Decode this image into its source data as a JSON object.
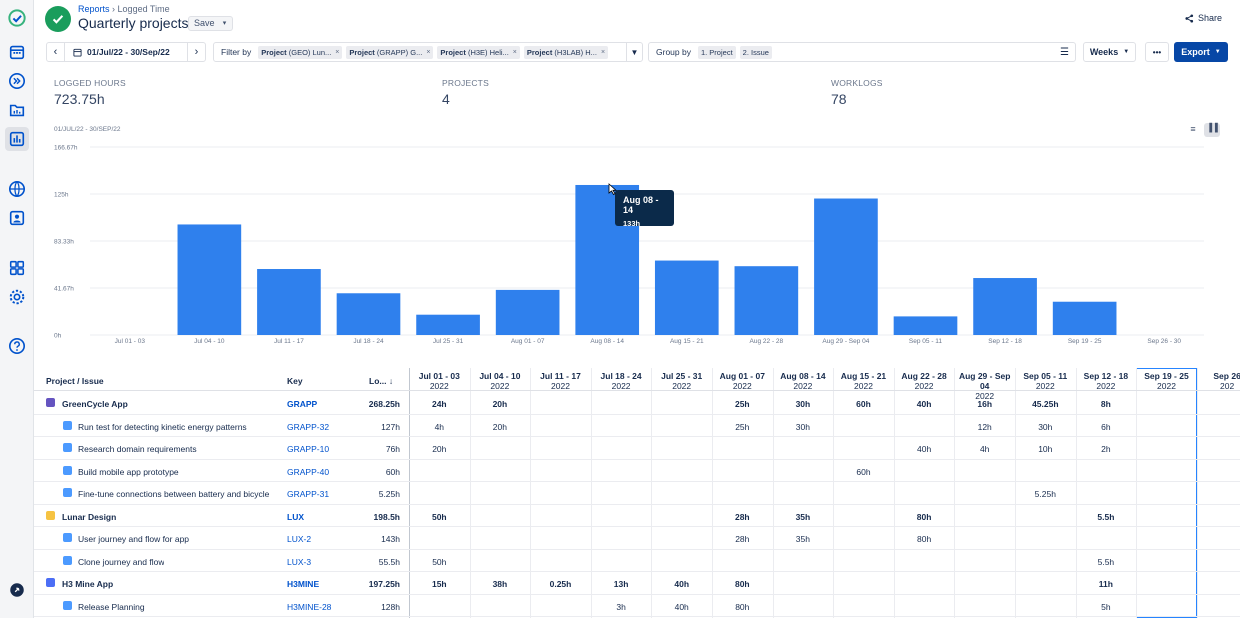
{
  "breadcrumb": {
    "root": "Reports",
    "sep": "›",
    "current": "Logged Time"
  },
  "title": "Quarterly projects",
  "save_label": "Save",
  "share_label": "Share",
  "date_range": "01/Jul/22 - 30/Sep/22",
  "filter_label": "Filter by",
  "filters": [
    {
      "bold": "Project",
      "rest": "(GEO) Lun..."
    },
    {
      "bold": "Project",
      "rest": "(GRAPP) G..."
    },
    {
      "bold": "Project",
      "rest": "(H3E) Heli..."
    },
    {
      "bold": "Project",
      "rest": "(H3LAB) H..."
    }
  ],
  "group_label": "Group by",
  "groups": [
    "1. Project",
    "2. Issue"
  ],
  "period_select": "Weeks",
  "more_label": "•••",
  "export_label": "Export",
  "stats": [
    {
      "label": "LOGGED HOURS",
      "value": "723.75h"
    },
    {
      "label": "PROJECTS",
      "value": "4"
    },
    {
      "label": "WORKLOGS",
      "value": "78"
    }
  ],
  "chart_range_label": "01/JUL/22 - 30/SEP/22",
  "tooltip": {
    "title": "Aug 08 - 14",
    "value": "133h"
  },
  "chart_data": {
    "type": "bar",
    "categories": [
      "Jul 01 - 03",
      "Jul 04 - 10",
      "Jul 11 - 17",
      "Jul 18 - 24",
      "Jul 25 - 31",
      "Aug 01 - 07",
      "Aug 08 - 14",
      "Aug 15 - 21",
      "Aug 22 - 28",
      "Aug 29 - Sep 04",
      "Sep 05 - 11",
      "Sep 12 - 18",
      "Sep 19 - 25",
      "Sep 26 - 30"
    ],
    "values": [
      0,
      98,
      58.5,
      37,
      18,
      40,
      133,
      66,
      61,
      121,
      16.5,
      50.5,
      29.5,
      0
    ],
    "ylim": [
      0,
      166.67
    ],
    "yticks": [
      "0h",
      "41.67h",
      "83.33h",
      "125h",
      "166.67h"
    ],
    "ytick_values": [
      0,
      41.67,
      83.33,
      125,
      166.67
    ],
    "grid": true,
    "color": "#2f80ed"
  },
  "table": {
    "col_project": "Project / Issue",
    "col_key": "Key",
    "col_logged": "Lo...",
    "sort_icon": "↓",
    "weeks": [
      {
        "d": "Jul 01 - 03",
        "y": "2022"
      },
      {
        "d": "Jul 04 - 10",
        "y": "2022"
      },
      {
        "d": "Jul 11 - 17",
        "y": "2022"
      },
      {
        "d": "Jul 18 - 24",
        "y": "2022"
      },
      {
        "d": "Jul 25 - 31",
        "y": "2022"
      },
      {
        "d": "Aug 01 - 07",
        "y": "2022"
      },
      {
        "d": "Aug 08 - 14",
        "y": "2022"
      },
      {
        "d": "Aug 15 - 21",
        "y": "2022"
      },
      {
        "d": "Aug 22 - 28",
        "y": "2022"
      },
      {
        "d": "Aug 29 - Sep 04",
        "y": "2022"
      },
      {
        "d": "Sep 05 - 11",
        "y": "2022"
      },
      {
        "d": "Sep 12 - 18",
        "y": "2022"
      },
      {
        "d": "Sep 19 - 25",
        "y": "2022"
      },
      {
        "d": "Sep 26",
        "y": "202"
      }
    ],
    "rows": [
      {
        "type": "project",
        "icon": "#6554c0",
        "name": "GreenCycle App",
        "key": "GRAPP",
        "total": "268.25h",
        "cells": [
          "24h",
          "20h",
          "",
          "",
          "",
          "25h",
          "30h",
          "60h",
          "40h",
          "16h",
          "45.25h",
          "8h",
          "",
          ""
        ]
      },
      {
        "type": "issue",
        "name": "Run test for detecting kinetic energy patterns",
        "key": "GRAPP-32",
        "total": "127h",
        "cells": [
          "4h",
          "20h",
          "",
          "",
          "",
          "25h",
          "30h",
          "",
          "",
          "12h",
          "30h",
          "6h",
          "",
          ""
        ]
      },
      {
        "type": "issue",
        "name": "Research domain requirements",
        "key": "GRAPP-10",
        "total": "76h",
        "cells": [
          "20h",
          "",
          "",
          "",
          "",
          "",
          "",
          "",
          "40h",
          "4h",
          "10h",
          "2h",
          "",
          ""
        ]
      },
      {
        "type": "issue",
        "name": "Build mobile app prototype",
        "key": "GRAPP-40",
        "total": "60h",
        "cells": [
          "",
          "",
          "",
          "",
          "",
          "",
          "",
          "60h",
          "",
          "",
          "",
          "",
          "",
          ""
        ]
      },
      {
        "type": "issue",
        "name": "Fine-tune connections between battery and bicycle",
        "key": "GRAPP-31",
        "total": "5.25h",
        "cells": [
          "",
          "",
          "",
          "",
          "",
          "",
          "",
          "",
          "",
          "",
          "5.25h",
          "",
          "",
          ""
        ]
      },
      {
        "type": "project",
        "icon": "#f6c342",
        "name": "Lunar Design",
        "key": "LUX",
        "total": "198.5h",
        "cells": [
          "50h",
          "",
          "",
          "",
          "",
          "28h",
          "35h",
          "",
          "80h",
          "",
          "",
          "5.5h",
          "",
          ""
        ]
      },
      {
        "type": "issue",
        "name": "User journey and flow for app",
        "key": "LUX-2",
        "total": "143h",
        "cells": [
          "",
          "",
          "",
          "",
          "",
          "28h",
          "35h",
          "",
          "80h",
          "",
          "",
          "",
          "",
          ""
        ]
      },
      {
        "type": "issue",
        "name": "Clone journey and flow",
        "key": "LUX-3",
        "total": "55.5h",
        "cells": [
          "50h",
          "",
          "",
          "",
          "",
          "",
          "",
          "",
          "",
          "",
          "",
          "5.5h",
          "",
          ""
        ]
      },
      {
        "type": "project",
        "icon": "#4c6ef5",
        "name": "H3 Mine App",
        "key": "H3MINE",
        "total": "197.25h",
        "cells": [
          "15h",
          "38h",
          "0.25h",
          "13h",
          "40h",
          "80h",
          "",
          "",
          "",
          "",
          "",
          "11h",
          "",
          ""
        ]
      },
      {
        "type": "issue",
        "name": "Release Planning",
        "key": "H3MINE-28",
        "total": "128h",
        "cells": [
          "",
          "",
          "",
          "3h",
          "40h",
          "80h",
          "",
          "",
          "",
          "",
          "",
          "5h",
          "",
          ""
        ]
      }
    ]
  },
  "colors": {
    "accent": "#0747a6",
    "bar": "#2f80ed",
    "link": "#0052cc",
    "highlight_col": "#2684ff"
  },
  "rail_icons": [
    "app-logo-icon",
    "calendar-icon",
    "forward-icon",
    "folder-chart-icon",
    "bar-chart-icon",
    "globe-icon",
    "contact-icon",
    "dashboard-icon",
    "settings-icon",
    "help-icon",
    "pin-icon"
  ]
}
